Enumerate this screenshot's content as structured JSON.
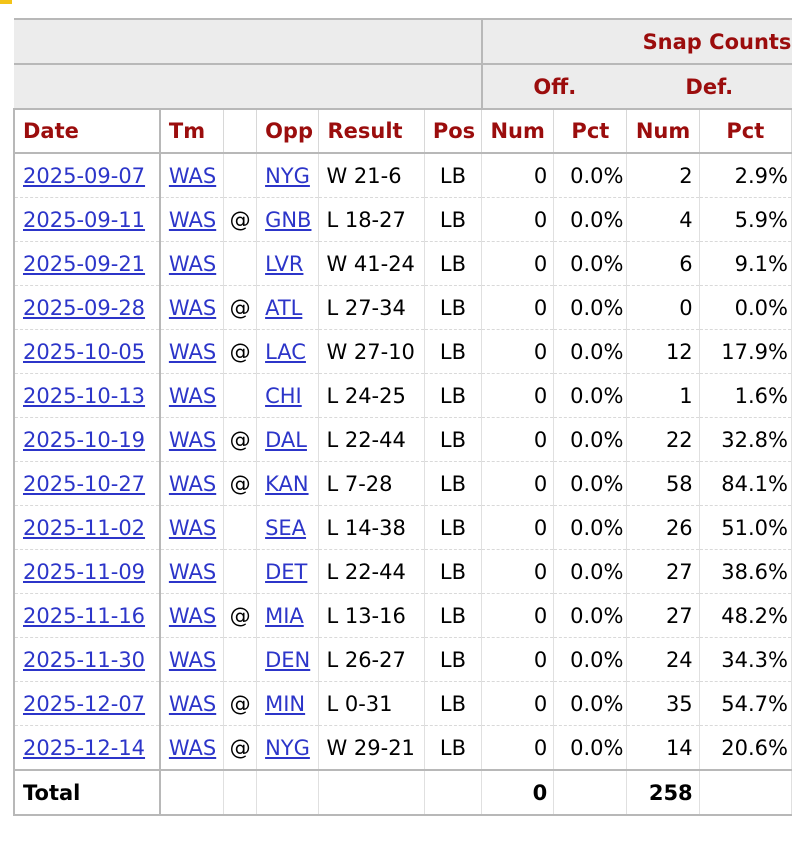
{
  "table": {
    "group_header": "Snap Counts",
    "sub_headers": {
      "offense": "Off.",
      "defense": "Def."
    },
    "columns": {
      "date": "Date",
      "team": "Tm",
      "opponent": "Opp",
      "result": "Result",
      "position": "Pos",
      "off_num": "Num",
      "off_pct": "Pct",
      "def_num": "Num",
      "def_pct": "Pct"
    },
    "rows": [
      {
        "date": "2025-09-07",
        "team": "WAS",
        "at": "",
        "opp": "NYG",
        "result": "W 21-6",
        "pos": "LB",
        "off_num": "0",
        "off_pct": "0.0%",
        "def_num": "2",
        "def_pct": "2.9%"
      },
      {
        "date": "2025-09-11",
        "team": "WAS",
        "at": "@",
        "opp": "GNB",
        "result": "L 18-27",
        "pos": "LB",
        "off_num": "0",
        "off_pct": "0.0%",
        "def_num": "4",
        "def_pct": "5.9%"
      },
      {
        "date": "2025-09-21",
        "team": "WAS",
        "at": "",
        "opp": "LVR",
        "result": "W 41-24",
        "pos": "LB",
        "off_num": "0",
        "off_pct": "0.0%",
        "def_num": "6",
        "def_pct": "9.1%"
      },
      {
        "date": "2025-09-28",
        "team": "WAS",
        "at": "@",
        "opp": "ATL",
        "result": "L 27-34",
        "pos": "LB",
        "off_num": "0",
        "off_pct": "0.0%",
        "def_num": "0",
        "def_pct": "0.0%"
      },
      {
        "date": "2025-10-05",
        "team": "WAS",
        "at": "@",
        "opp": "LAC",
        "result": "W 27-10",
        "pos": "LB",
        "off_num": "0",
        "off_pct": "0.0%",
        "def_num": "12",
        "def_pct": "17.9%"
      },
      {
        "date": "2025-10-13",
        "team": "WAS",
        "at": "",
        "opp": "CHI",
        "result": "L 24-25",
        "pos": "LB",
        "off_num": "0",
        "off_pct": "0.0%",
        "def_num": "1",
        "def_pct": "1.6%"
      },
      {
        "date": "2025-10-19",
        "team": "WAS",
        "at": "@",
        "opp": "DAL",
        "result": "L 22-44",
        "pos": "LB",
        "off_num": "0",
        "off_pct": "0.0%",
        "def_num": "22",
        "def_pct": "32.8%"
      },
      {
        "date": "2025-10-27",
        "team": "WAS",
        "at": "@",
        "opp": "KAN",
        "result": "L 7-28",
        "pos": "LB",
        "off_num": "0",
        "off_pct": "0.0%",
        "def_num": "58",
        "def_pct": "84.1%"
      },
      {
        "date": "2025-11-02",
        "team": "WAS",
        "at": "",
        "opp": "SEA",
        "result": "L 14-38",
        "pos": "LB",
        "off_num": "0",
        "off_pct": "0.0%",
        "def_num": "26",
        "def_pct": "51.0%"
      },
      {
        "date": "2025-11-09",
        "team": "WAS",
        "at": "",
        "opp": "DET",
        "result": "L 22-44",
        "pos": "LB",
        "off_num": "0",
        "off_pct": "0.0%",
        "def_num": "27",
        "def_pct": "38.6%"
      },
      {
        "date": "2025-11-16",
        "team": "WAS",
        "at": "@",
        "opp": "MIA",
        "result": "L 13-16",
        "pos": "LB",
        "off_num": "0",
        "off_pct": "0.0%",
        "def_num": "27",
        "def_pct": "48.2%"
      },
      {
        "date": "2025-11-30",
        "team": "WAS",
        "at": "",
        "opp": "DEN",
        "result": "L 26-27",
        "pos": "LB",
        "off_num": "0",
        "off_pct": "0.0%",
        "def_num": "24",
        "def_pct": "34.3%"
      },
      {
        "date": "2025-12-07",
        "team": "WAS",
        "at": "@",
        "opp": "MIN",
        "result": "L 0-31",
        "pos": "LB",
        "off_num": "0",
        "off_pct": "0.0%",
        "def_num": "35",
        "def_pct": "54.7%"
      },
      {
        "date": "2025-12-14",
        "team": "WAS",
        "at": "@",
        "opp": "NYG",
        "result": "W 29-21",
        "pos": "LB",
        "off_num": "0",
        "off_pct": "0.0%",
        "def_num": "14",
        "def_pct": "20.6%"
      }
    ],
    "total": {
      "label": "Total",
      "off_num": "0",
      "def_num": "258"
    }
  },
  "colors": {
    "header_text": "#9b0d0d",
    "link": "#2c35c9",
    "overheader_bg": "#ececec"
  }
}
